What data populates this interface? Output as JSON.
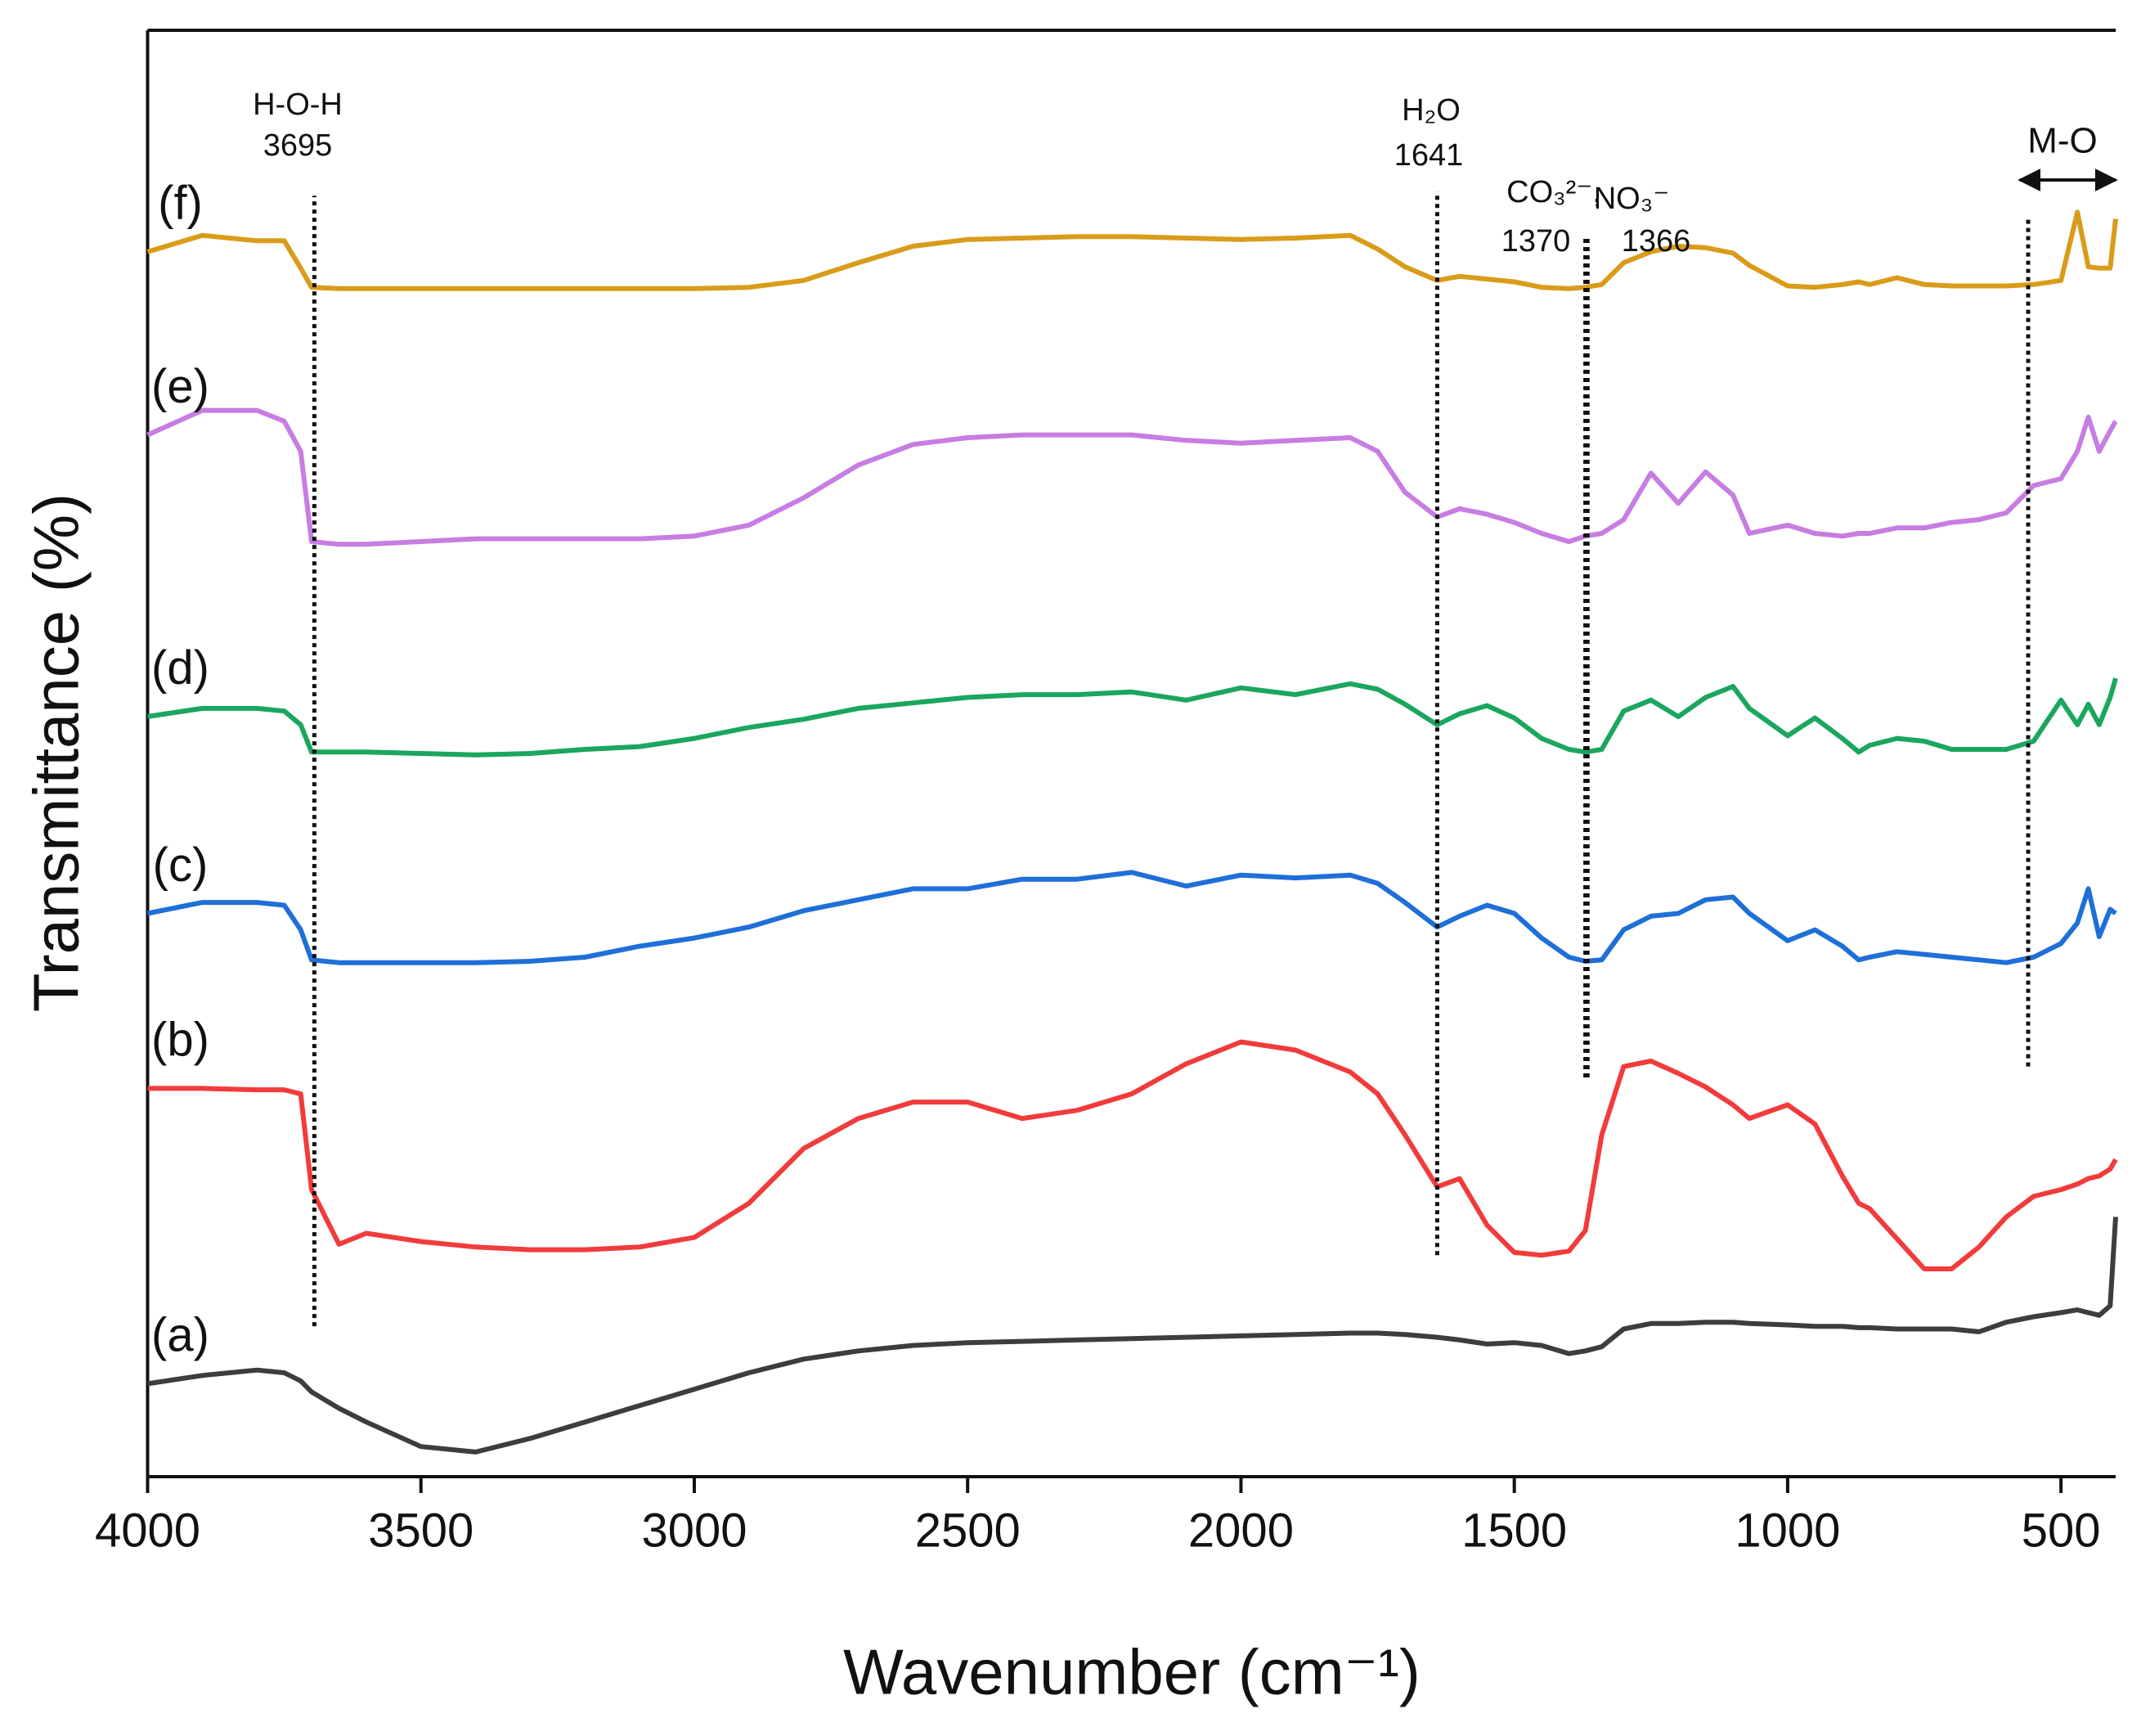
{
  "chart_data": {
    "type": "line",
    "xlabel": "Wavenumber (cm⁻¹)",
    "ylabel": "Transmittance (%)",
    "xlim": [
      4000,
      400
    ],
    "ylim": [
      0,
      105.8
    ],
    "xticks": [
      4000,
      3500,
      3000,
      2500,
      2000,
      1500,
      1000,
      500
    ],
    "x": [
      4000,
      3900,
      3800,
      3750,
      3720,
      3700,
      3650,
      3600,
      3500,
      3400,
      3300,
      3200,
      3100,
      3000,
      2900,
      2800,
      2700,
      2600,
      2500,
      2400,
      2300,
      2200,
      2100,
      2000,
      1900,
      1800,
      1750,
      1700,
      1641,
      1600,
      1550,
      1500,
      1450,
      1400,
      1370,
      1340,
      1300,
      1250,
      1200,
      1150,
      1100,
      1070,
      1000,
      950,
      900,
      870,
      850,
      800,
      750,
      700,
      650,
      600,
      550,
      500,
      470,
      450,
      430,
      410,
      400
    ],
    "series": [
      {
        "name": "(a)",
        "color": "#3d3d3d",
        "values": [
          6.8,
          7.4,
          7.8,
          7.6,
          7.0,
          6.2,
          5.0,
          4.0,
          2.2,
          1.8,
          2.8,
          4.0,
          5.2,
          6.4,
          7.6,
          8.6,
          9.2,
          9.6,
          9.8,
          9.9,
          10.0,
          10.1,
          10.2,
          10.3,
          10.4,
          10.5,
          10.5,
          10.4,
          10.2,
          10.0,
          9.7,
          9.8,
          9.6,
          9.0,
          9.2,
          9.5,
          10.8,
          11.2,
          11.2,
          11.3,
          11.3,
          11.2,
          11.1,
          11.0,
          11.0,
          10.9,
          10.9,
          10.8,
          10.8,
          10.8,
          10.6,
          11.3,
          11.7,
          12.0,
          12.2,
          12.0,
          11.8,
          12.5,
          19.0
        ]
      },
      {
        "name": "(b)",
        "color": "#f23b3b",
        "values": [
          28.4,
          28.4,
          28.3,
          28.3,
          28.0,
          21.0,
          17.0,
          17.8,
          17.2,
          16.8,
          16.6,
          16.6,
          16.8,
          17.5,
          20.0,
          24.0,
          26.2,
          27.4,
          27.4,
          26.2,
          26.8,
          28.0,
          30.2,
          31.8,
          31.2,
          29.6,
          28.0,
          25.0,
          21.2,
          21.8,
          18.4,
          16.4,
          16.2,
          16.5,
          18.0,
          25.0,
          30.0,
          30.4,
          29.5,
          28.5,
          27.2,
          26.2,
          27.2,
          25.8,
          22.0,
          20.0,
          19.6,
          17.4,
          15.2,
          15.2,
          16.8,
          19.0,
          20.5,
          21.0,
          21.4,
          21.8,
          22.0,
          22.5,
          23.2
        ]
      },
      {
        "name": "(c)",
        "color": "#1f6fd8",
        "values": [
          41.2,
          42.0,
          42.0,
          41.8,
          40.0,
          37.8,
          37.6,
          37.6,
          37.6,
          37.6,
          37.7,
          38.0,
          38.8,
          39.4,
          40.2,
          41.4,
          42.2,
          43.0,
          43.0,
          43.7,
          43.7,
          44.2,
          43.2,
          44.0,
          43.8,
          44.0,
          43.4,
          42.0,
          40.2,
          41.0,
          41.8,
          41.2,
          39.4,
          38.0,
          37.7,
          37.8,
          40.0,
          41.0,
          41.2,
          42.2,
          42.4,
          41.2,
          39.2,
          40.0,
          38.8,
          37.8,
          38.0,
          38.4,
          38.2,
          38.0,
          37.8,
          37.6,
          38.0,
          39.0,
          40.5,
          43.0,
          39.5,
          41.5,
          41.2
        ]
      },
      {
        "name": "(d)",
        "color": "#1ba65f",
        "values": [
          55.6,
          56.2,
          56.2,
          56.0,
          55.0,
          53.0,
          53.0,
          53.0,
          52.9,
          52.8,
          52.9,
          53.2,
          53.4,
          54.0,
          54.8,
          55.4,
          56.2,
          56.6,
          57.0,
          57.2,
          57.2,
          57.4,
          56.8,
          57.7,
          57.2,
          58.0,
          57.6,
          56.5,
          55.0,
          55.8,
          56.4,
          55.5,
          54.0,
          53.2,
          53.0,
          53.2,
          56.0,
          56.8,
          55.6,
          57.0,
          57.8,
          56.2,
          54.2,
          55.5,
          54.0,
          53.0,
          53.5,
          54.0,
          53.8,
          53.2,
          53.2,
          53.2,
          53.8,
          56.8,
          55.0,
          56.5,
          55.0,
          57.0,
          58.4
        ]
      },
      {
        "name": "(e)",
        "color": "#c77de2",
        "values": [
          76.2,
          78.0,
          78.0,
          77.2,
          75.0,
          68.4,
          68.2,
          68.2,
          68.4,
          68.6,
          68.6,
          68.6,
          68.6,
          68.8,
          69.6,
          71.6,
          74.0,
          75.5,
          76.0,
          76.2,
          76.2,
          76.2,
          75.8,
          75.6,
          75.8,
          76.0,
          75.0,
          72.0,
          70.2,
          70.8,
          70.4,
          69.8,
          69.0,
          68.4,
          68.8,
          69.0,
          70.0,
          73.4,
          71.2,
          73.5,
          71.8,
          69.0,
          69.6,
          69.0,
          68.8,
          69.0,
          69.0,
          69.4,
          69.4,
          69.8,
          70.0,
          70.5,
          72.5,
          73.0,
          75.0,
          77.5,
          75.0,
          76.5,
          77.2
        ]
      },
      {
        "name": "(f)",
        "color": "#d99c1a",
        "values": [
          89.6,
          90.8,
          90.4,
          90.4,
          88.4,
          87.0,
          86.9,
          86.9,
          86.9,
          86.9,
          86.9,
          86.9,
          86.9,
          86.9,
          87.0,
          87.5,
          88.8,
          90.0,
          90.5,
          90.6,
          90.7,
          90.7,
          90.6,
          90.5,
          90.6,
          90.8,
          89.8,
          88.5,
          87.5,
          87.8,
          87.6,
          87.4,
          87.0,
          86.9,
          87.0,
          87.2,
          88.8,
          89.6,
          90.0,
          89.9,
          89.5,
          88.6,
          87.1,
          87.0,
          87.2,
          87.4,
          87.2,
          87.7,
          87.2,
          87.1,
          87.1,
          87.1,
          87.2,
          87.5,
          92.5,
          88.5,
          88.4,
          88.4,
          92.0
        ]
      }
    ],
    "annotations": [
      {
        "label": "H-O-H",
        "x": 3695,
        "y_range": [
          11.0,
          93.7
        ]
      },
      {
        "label": "H₂O",
        "x": 1641,
        "y_range": [
          16.2,
          94.0
        ]
      },
      {
        "label": "CO₃²⁻,",
        "x": 1370,
        "y_range": [
          29.2,
          90.8
        ]
      },
      {
        "label": "NO₃⁻",
        "x": 1366,
        "y_range": [
          29.2,
          90.8
        ]
      },
      {
        "label": "M-O",
        "x": 560,
        "y_range": [
          30.0,
          92.0
        ],
        "arrow": [
          575,
          400
        ]
      }
    ]
  }
}
